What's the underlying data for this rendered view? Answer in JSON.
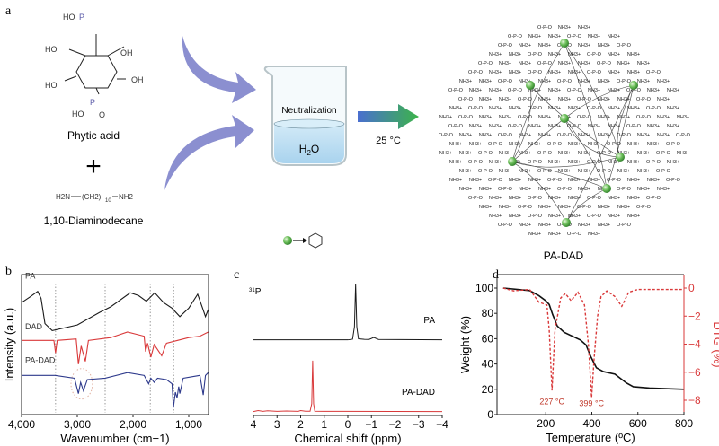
{
  "panel_a": {
    "label": "a",
    "phytic_acid_label": "Phytic acid",
    "plus_sign": "+",
    "diamine_formula": {
      "left": "H2N",
      "middle": "(CH2)",
      "subscript": "10",
      "right": "NH2"
    },
    "diamine_label": "1,10-Diaminodecane",
    "beaker_text": "Neutralization",
    "solvent": {
      "main": "H",
      "sub": "2",
      "end": "O"
    },
    "condition": "25 °C",
    "product_label": "PA-DAD",
    "network_group_text": "NH3+",
    "network_link_text": "O-P-O",
    "phosphate_groups": [
      "HO",
      "P",
      "OH",
      "O"
    ],
    "colors": {
      "arrow": "#8b8fd0",
      "reaction_arrow_start": "#4a6fd0",
      "reaction_arrow_end": "#3cb44a",
      "node": "#6cbf5a",
      "water": "#bfe0f3"
    }
  },
  "chart_data": [
    {
      "panel": "b",
      "type": "line",
      "xlabel": "Wavenumber (cm−1)",
      "ylabel": "Intensity (a.u.)",
      "xlim": [
        4000,
        650
      ],
      "x_ticks": [
        "4,000",
        "3,000",
        "2,000",
        "1,000"
      ],
      "x_tick_values": [
        4000,
        3000,
        2000,
        1000
      ],
      "ylim": [
        0,
        10
      ],
      "reference_lines": [
        3390,
        2500,
        1690,
        1270
      ],
      "series": [
        {
          "name": "PA",
          "color": "#1a1a1a",
          "points": [
            [
              4000,
              8.0
            ],
            [
              3850,
              8.4
            ],
            [
              3710,
              8.8
            ],
            [
              3650,
              8.3
            ],
            [
              3580,
              6.5
            ],
            [
              3450,
              6.0
            ],
            [
              3000,
              6.4
            ],
            [
              2600,
              7.3
            ],
            [
              2400,
              7.7
            ],
            [
              2050,
              8.7
            ],
            [
              1900,
              8.5
            ],
            [
              1760,
              8.1
            ],
            [
              1610,
              8.7
            ],
            [
              1450,
              8.0
            ],
            [
              1300,
              7.6
            ],
            [
              1160,
              7.0
            ],
            [
              1000,
              7.6
            ],
            [
              840,
              8.6
            ],
            [
              760,
              7.7
            ],
            [
              700,
              7.0
            ],
            [
              650,
              7.5
            ]
          ]
        },
        {
          "name": "DAD",
          "color": "#d9393a",
          "points": [
            [
              4000,
              5.3
            ],
            [
              3420,
              5.3
            ],
            [
              3390,
              4.4
            ],
            [
              3360,
              5.3
            ],
            [
              3020,
              5.4
            ],
            [
              2980,
              3.6
            ],
            [
              2930,
              4.9
            ],
            [
              2855,
              3.8
            ],
            [
              2800,
              5.3
            ],
            [
              2400,
              5.5
            ],
            [
              2100,
              5.9
            ],
            [
              1800,
              5.6
            ],
            [
              1775,
              4.5
            ],
            [
              1740,
              5.1
            ],
            [
              1680,
              4.1
            ],
            [
              1620,
              5.0
            ],
            [
              1485,
              4.2
            ],
            [
              1400,
              5.1
            ],
            [
              1200,
              5.3
            ],
            [
              1000,
              5.5
            ],
            [
              800,
              5.6
            ],
            [
              650,
              5.9
            ]
          ]
        },
        {
          "name": "PA-DAD",
          "color": "#2e3a8c",
          "points": [
            [
              4000,
              2.8
            ],
            [
              3400,
              2.8
            ],
            [
              3050,
              2.6
            ],
            [
              2980,
              1.5
            ],
            [
              2940,
              2.3
            ],
            [
              2890,
              1.7
            ],
            [
              2820,
              2.5
            ],
            [
              2500,
              2.6
            ],
            [
              2100,
              3.0
            ],
            [
              1800,
              2.8
            ],
            [
              1720,
              2.2
            ],
            [
              1680,
              2.6
            ],
            [
              1620,
              2.3
            ],
            [
              1560,
              2.6
            ],
            [
              1400,
              2.5
            ],
            [
              1300,
              2.2
            ],
            [
              1275,
              0.5
            ],
            [
              1240,
              1.6
            ],
            [
              1210,
              1.2
            ],
            [
              1180,
              2.0
            ],
            [
              1160,
              1.5
            ],
            [
              1100,
              2.6
            ],
            [
              800,
              2.8
            ],
            [
              740,
              1.4
            ],
            [
              700,
              2.8
            ],
            [
              650,
              3.0
            ]
          ]
        }
      ],
      "ellipse_center": 2920
    },
    {
      "panel": "c",
      "type": "line",
      "nucleus": "31P",
      "xlabel": "Chemical shift (ppm)",
      "xlim": [
        4,
        -4
      ],
      "x_ticks": [
        "4",
        "3",
        "2",
        "1",
        "0",
        "−1",
        "−2",
        "−3",
        "−4"
      ],
      "x_tick_values": [
        4,
        3,
        2,
        1,
        0,
        -1,
        -2,
        -3,
        -4
      ],
      "series": [
        {
          "name": "PA",
          "color": "#1a1a1a",
          "offset": 55,
          "points": [
            [
              4,
              0
            ],
            [
              0,
              0
            ],
            [
              -0.2,
              0.5
            ],
            [
              -0.28,
              10
            ],
            [
              -0.33,
              43
            ],
            [
              -0.38,
              10
            ],
            [
              -0.45,
              0.8
            ],
            [
              -0.7,
              0.4
            ],
            [
              -0.9,
              0.3
            ],
            [
              -1.1,
              1.8
            ],
            [
              -1.3,
              0.3
            ],
            [
              -4,
              0
            ]
          ]
        },
        {
          "name": "PA-DAD",
          "color": "#d9393a",
          "offset": 0,
          "points": [
            [
              4,
              0
            ],
            [
              3.8,
              0.8
            ],
            [
              3.6,
              0.2
            ],
            [
              3.4,
              0.6
            ],
            [
              3.0,
              0.2
            ],
            [
              2.6,
              0.4
            ],
            [
              2.1,
              0.2
            ],
            [
              2.0,
              0.8
            ],
            [
              1.8,
              0.3
            ],
            [
              1.6,
              0.3
            ],
            [
              1.53,
              6
            ],
            [
              1.49,
              39
            ],
            [
              1.45,
              6
            ],
            [
              1.4,
              0.3
            ],
            [
              1.0,
              0.2
            ],
            [
              -4,
              0
            ]
          ]
        }
      ],
      "ylim": [
        -3,
        105
      ]
    },
    {
      "panel": "d",
      "type": "line",
      "xlabel": "Temperature (ºC)",
      "ylabel": "Weight (%)",
      "y2label": "DTG (%)",
      "xlim": [
        0,
        800
      ],
      "x_tick_values": [
        200,
        400,
        600,
        800
      ],
      "x_ticks": [
        "200",
        "400",
        "600",
        "800"
      ],
      "ylim": [
        -10,
        110
      ],
      "y_tick_values": [
        0,
        20,
        40,
        60,
        80,
        100
      ],
      "y_ticks": [
        "0",
        "20",
        "40",
        "60",
        "80",
        "100"
      ],
      "y2lim": [
        -9,
        1
      ],
      "y2_tick_values": [
        0,
        -2,
        -4,
        -6,
        -8
      ],
      "y2_ticks": [
        "0",
        "−2",
        "−4",
        "−6",
        "−8"
      ],
      "series": [
        {
          "name": "Weight",
          "axis": "left",
          "color": "#111111",
          "style": "solid",
          "points": [
            [
              15,
              100
            ],
            [
              130,
              98
            ],
            [
              170,
              94
            ],
            [
              200,
              90
            ],
            [
              215,
              87
            ],
            [
              230,
              79
            ],
            [
              250,
              70
            ],
            [
              280,
              65
            ],
            [
              350,
              59
            ],
            [
              375,
              55
            ],
            [
              395,
              46
            ],
            [
              420,
              37
            ],
            [
              450,
              34
            ],
            [
              500,
              32
            ],
            [
              550,
              25
            ],
            [
              580,
              22
            ],
            [
              650,
              21
            ],
            [
              800,
              20
            ]
          ]
        },
        {
          "name": "DTG",
          "axis": "right",
          "color": "#d9393a",
          "style": "dashed",
          "points": [
            [
              15,
              0
            ],
            [
              60,
              -0.2
            ],
            [
              130,
              -0.1
            ],
            [
              170,
              -1.0
            ],
            [
              205,
              -1.2
            ],
            [
              215,
              -3
            ],
            [
              227,
              -7.3
            ],
            [
              240,
              -3
            ],
            [
              265,
              -0.7
            ],
            [
              285,
              -0.4
            ],
            [
              310,
              -0.9
            ],
            [
              340,
              -0.3
            ],
            [
              368,
              -1.2
            ],
            [
              385,
              -4
            ],
            [
              399,
              -7.8
            ],
            [
              410,
              -5
            ],
            [
              425,
              -2
            ],
            [
              440,
              -0.6
            ],
            [
              465,
              -0.2
            ],
            [
              500,
              -0.6
            ],
            [
              530,
              -1.3
            ],
            [
              560,
              -0.3
            ],
            [
              600,
              -0.1
            ],
            [
              800,
              -0.1
            ]
          ]
        }
      ],
      "annotations": [
        {
          "text": "227 °C",
          "x": 227,
          "y2": -8.3
        },
        {
          "text": "399 °C",
          "x": 399,
          "y2": -8.4
        }
      ]
    }
  ],
  "panel_labels": {
    "b": "b",
    "c": "c",
    "d": "d"
  }
}
